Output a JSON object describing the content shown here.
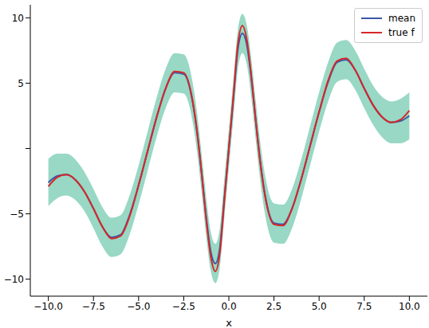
{
  "chart_data": {
    "type": "line",
    "x_label": "x",
    "x": [
      -10,
      -9.5,
      -9,
      -8.5,
      -8,
      -7.5,
      -7,
      -6.5,
      -6,
      -5.5,
      -5,
      -4.5,
      -4,
      -3.5,
      -3,
      -2.5,
      -2,
      -1.75,
      -1.5,
      -1.25,
      -1,
      -0.75,
      -0.5,
      -0.25,
      0,
      0.25,
      0.5,
      0.75,
      1,
      1.25,
      1.5,
      1.75,
      2,
      2.5,
      3,
      3.5,
      4,
      4.5,
      5,
      5.5,
      6,
      6.5,
      7,
      7.5,
      8,
      8.5,
      9,
      9.5,
      10
    ],
    "series": [
      {
        "name": "mean",
        "color": "#3c56a6",
        "values": [
          -2.6,
          -2.1,
          -2.0,
          -2.4,
          -3.3,
          -4.6,
          -6.0,
          -6.8,
          -6.6,
          -5.1,
          -2.8,
          -0.2,
          2.4,
          4.6,
          5.8,
          5.7,
          3.5,
          1.1,
          -2.0,
          -5.3,
          -7.9,
          -8.8,
          -7.6,
          -3.8,
          0,
          3.8,
          7.6,
          8.8,
          7.9,
          5.3,
          2.0,
          -1.1,
          -3.5,
          -5.7,
          -5.8,
          -4.6,
          -2.4,
          0.2,
          2.8,
          5.1,
          6.6,
          6.8,
          6.0,
          4.6,
          3.3,
          2.4,
          2.0,
          2.1,
          2.5
        ]
      },
      {
        "name": "true f",
        "color": "#d62728",
        "values": [
          -2.9,
          -2.2,
          -2.0,
          -2.4,
          -3.3,
          -4.6,
          -6.0,
          -6.9,
          -6.7,
          -5.2,
          -2.8,
          -0.2,
          2.4,
          4.6,
          5.9,
          5.8,
          3.6,
          1.2,
          -2.0,
          -5.5,
          -8.3,
          -9.4,
          -8.0,
          -4.0,
          0,
          4.0,
          8.0,
          9.4,
          8.3,
          5.5,
          2.0,
          -1.2,
          -3.6,
          -5.8,
          -5.9,
          -4.6,
          -2.4,
          0.2,
          2.8,
          5.2,
          6.7,
          6.9,
          6.0,
          4.6,
          3.3,
          2.4,
          2.0,
          2.2,
          2.9
        ]
      }
    ],
    "band": {
      "color": "#98d8c4",
      "lower": [
        -4.4,
        -3.8,
        -3.6,
        -3.95,
        -4.8,
        -6.1,
        -7.5,
        -8.3,
        -8.1,
        -6.6,
        -4.3,
        -1.7,
        0.9,
        3.1,
        4.3,
        4.2,
        2.0,
        -0.4,
        -3.5,
        -6.8,
        -9.4,
        -10.3,
        -9.1,
        -5.3,
        -1.5,
        2.3,
        6.1,
        7.3,
        6.4,
        3.8,
        0.5,
        -2.6,
        -5.0,
        -7.2,
        -7.3,
        -6.1,
        -3.9,
        -1.3,
        1.3,
        3.6,
        5.1,
        5.3,
        4.5,
        3.1,
        1.8,
        0.85,
        0.4,
        0.4,
        0.7
      ],
      "upper": [
        -0.8,
        -0.4,
        -0.4,
        -0.85,
        -1.8,
        -3.1,
        -4.5,
        -5.3,
        -5.1,
        -3.6,
        -1.3,
        1.3,
        3.9,
        6.1,
        7.3,
        7.2,
        5.0,
        2.6,
        -0.5,
        -3.8,
        -6.4,
        -7.3,
        -6.1,
        -2.3,
        1.5,
        5.3,
        9.1,
        10.3,
        9.4,
        6.8,
        3.5,
        0.4,
        -2.0,
        -4.2,
        -4.3,
        -3.1,
        -0.9,
        1.7,
        4.3,
        6.6,
        8.1,
        8.3,
        7.5,
        6.1,
        4.8,
        3.95,
        3.6,
        3.8,
        4.3
      ]
    },
    "xlim": [
      -11,
      11
    ],
    "xticks": [
      {
        "value": -10,
        "label": "−10.0"
      },
      {
        "value": -7.5,
        "label": "−7.5"
      },
      {
        "value": -5,
        "label": "−5.0"
      },
      {
        "value": -2.5,
        "label": "−2.5"
      },
      {
        "value": 0,
        "label": "0.0"
      },
      {
        "value": 2.5,
        "label": "2.5"
      },
      {
        "value": 5,
        "label": "5.0"
      },
      {
        "value": 7.5,
        "label": "7.5"
      },
      {
        "value": 10,
        "label": "10.0"
      }
    ],
    "ylim": [
      -11.3,
      11
    ],
    "yticks": [
      {
        "value": -10,
        "label": "−10"
      },
      {
        "value": -5,
        "label": "−5"
      },
      0,
      5,
      10
    ],
    "legend": "upper right"
  }
}
